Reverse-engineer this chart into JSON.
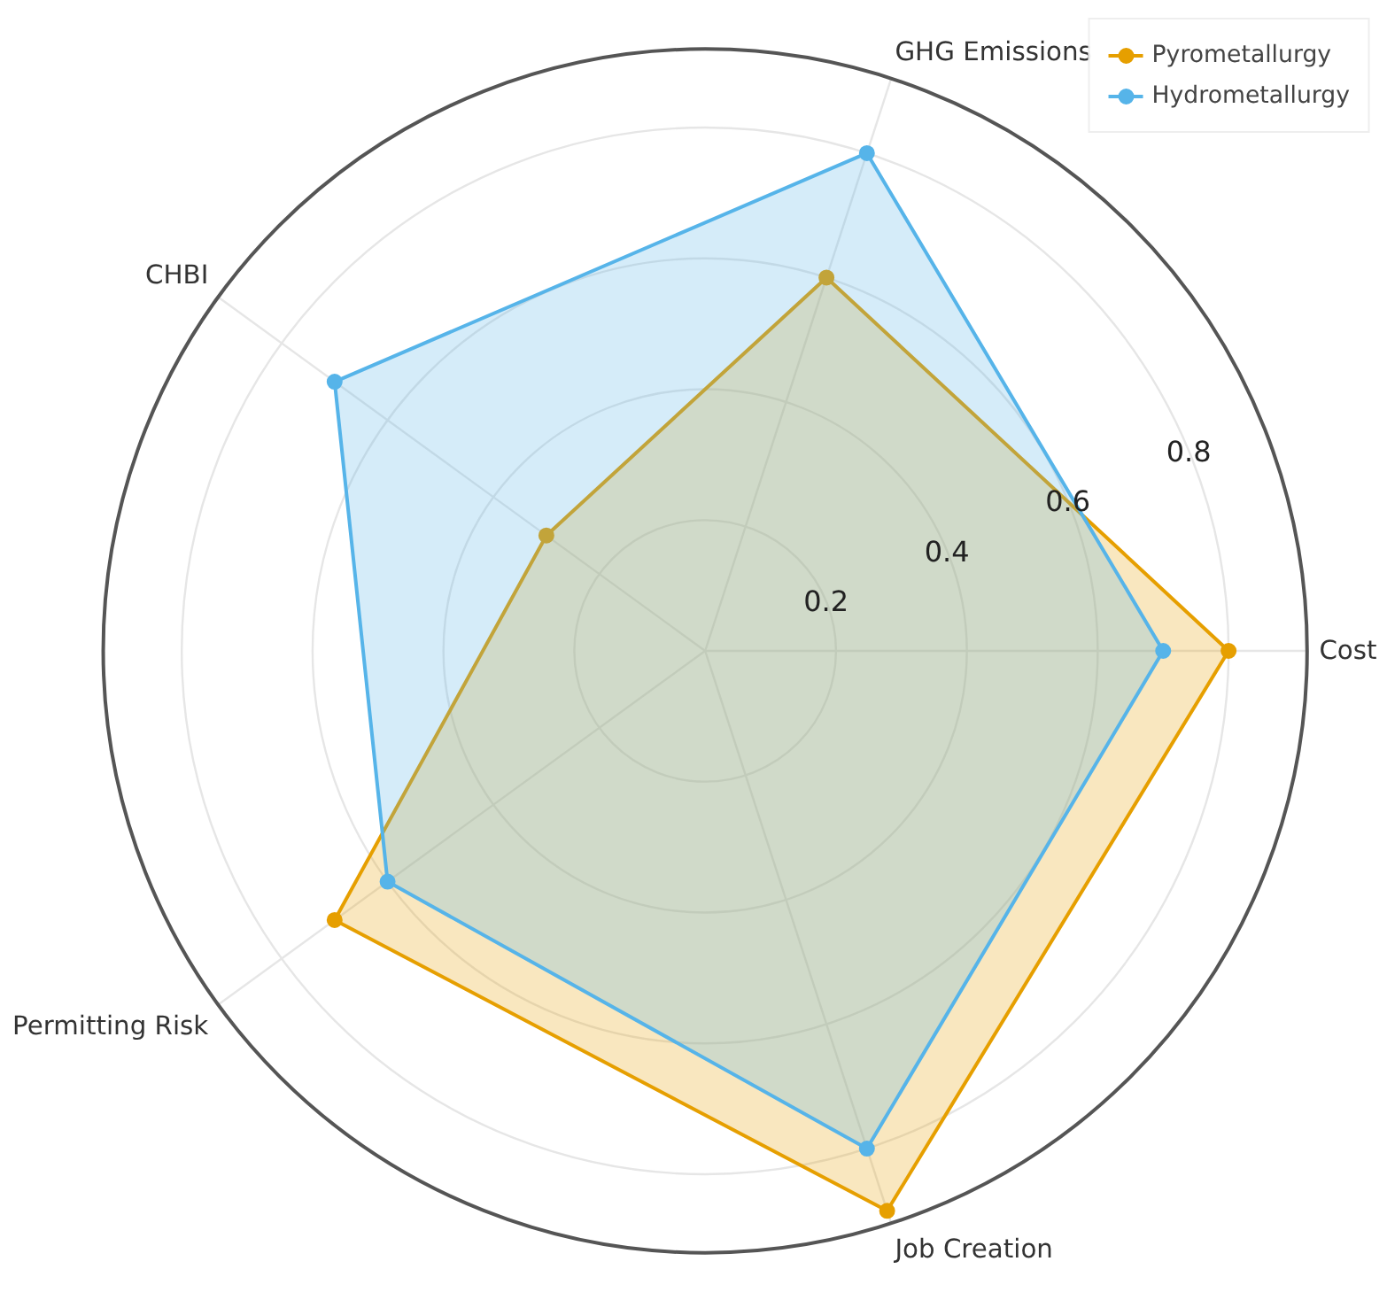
{
  "chart_data": {
    "type": "radar",
    "categories": [
      "GHG Emissions",
      "Cost",
      "Job Creation",
      "Permitting Risk",
      "CHBI"
    ],
    "series": [
      {
        "name": "Pyrometallurgy",
        "color": "#e69f00",
        "values": [
          0.6,
          0.8,
          0.9,
          0.7,
          0.3
        ]
      },
      {
        "name": "Hydrometallurgy",
        "color": "#56b4e9",
        "values": [
          0.8,
          0.7,
          0.8,
          0.6,
          0.7
        ]
      }
    ],
    "ylim": [
      0,
      0.92
    ],
    "yticks": [
      0.2,
      0.4,
      0.6,
      0.8
    ],
    "grid": true,
    "legend": "top right",
    "marker": "circle"
  }
}
